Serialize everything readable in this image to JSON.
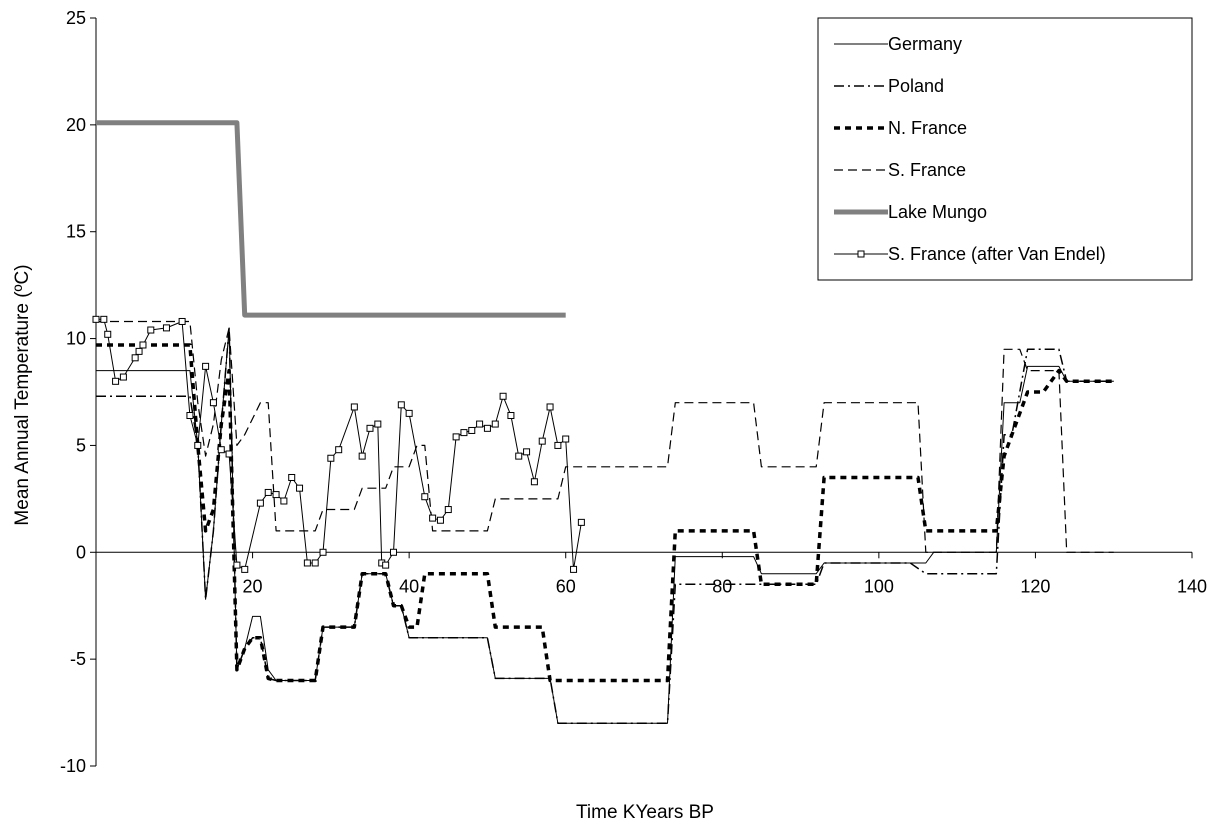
{
  "chart_data": {
    "type": "line",
    "title": "",
    "xlabel": "Time KYears BP",
    "ylabel": "Mean Annual Temperature (ºC)",
    "xlim": [
      0,
      140
    ],
    "ylim": [
      -10,
      25
    ],
    "x_ticks": [
      20,
      40,
      60,
      80,
      100,
      120,
      140
    ],
    "y_ticks": [
      -10,
      -5,
      0,
      5,
      10,
      15,
      20,
      25
    ],
    "grid": false,
    "legend_position": "top-right",
    "series": [
      {
        "name": "Germany",
        "style": "solid-thin",
        "color": "#000000",
        "points": [
          [
            0,
            8.5
          ],
          [
            12,
            8.5
          ],
          [
            13,
            5
          ],
          [
            14,
            -2.2
          ],
          [
            15,
            1
          ],
          [
            16,
            6
          ],
          [
            17,
            10.5
          ],
          [
            18,
            -5.5
          ],
          [
            19,
            -4.5
          ],
          [
            20,
            -3
          ],
          [
            21,
            -3
          ],
          [
            22,
            -5.5
          ],
          [
            23,
            -6
          ],
          [
            28,
            -6
          ],
          [
            29,
            -3.5
          ],
          [
            33,
            -3.5
          ],
          [
            34,
            -1
          ],
          [
            37,
            -1
          ],
          [
            38,
            -2.5
          ],
          [
            39,
            -2.5
          ],
          [
            40,
            -4
          ],
          [
            50,
            -4
          ],
          [
            51,
            -5.9
          ],
          [
            58,
            -5.9
          ],
          [
            59,
            -8
          ],
          [
            73,
            -8
          ],
          [
            74,
            -0.2
          ],
          [
            84,
            -0.2
          ],
          [
            85,
            -1
          ],
          [
            92,
            -1
          ],
          [
            93,
            -0.5
          ],
          [
            106,
            -0.5
          ],
          [
            107,
            0
          ],
          [
            115,
            0
          ],
          [
            116,
            7
          ],
          [
            118,
            7
          ],
          [
            119,
            8.7
          ],
          [
            123,
            8.7
          ],
          [
            124,
            8
          ],
          [
            130,
            8
          ]
        ]
      },
      {
        "name": "Poland",
        "style": "dash-dot",
        "color": "#000000",
        "points": [
          [
            0,
            7.3
          ],
          [
            12,
            7.3
          ],
          [
            13,
            5
          ],
          [
            14,
            -2.2
          ],
          [
            15,
            1
          ],
          [
            16,
            6
          ],
          [
            17,
            10.5
          ],
          [
            18,
            -5.5
          ],
          [
            19,
            -4.5
          ],
          [
            20,
            -4
          ],
          [
            21,
            -4
          ],
          [
            22,
            -5.9
          ],
          [
            23,
            -6
          ],
          [
            28,
            -6
          ],
          [
            29,
            -3.5
          ],
          [
            33,
            -3.5
          ],
          [
            34,
            -1
          ],
          [
            37,
            -1
          ],
          [
            38,
            -2.5
          ],
          [
            39,
            -2.5
          ],
          [
            40,
            -4
          ],
          [
            50,
            -4
          ],
          [
            51,
            -5.9
          ],
          [
            58,
            -5.9
          ],
          [
            59,
            -8
          ],
          [
            73,
            -8
          ],
          [
            74,
            -1.5
          ],
          [
            84,
            -1.5
          ],
          [
            85,
            -1.5
          ],
          [
            92,
            -1.5
          ],
          [
            93,
            -0.5
          ],
          [
            104,
            -0.5
          ],
          [
            106,
            -1
          ],
          [
            115,
            -1
          ],
          [
            116,
            5.5
          ],
          [
            117,
            5.5
          ],
          [
            119,
            9.5
          ],
          [
            123,
            9.5
          ],
          [
            124,
            8
          ],
          [
            130,
            8
          ]
        ]
      },
      {
        "name": "N. France",
        "style": "dotted-bold",
        "color": "#000000",
        "points": [
          [
            0,
            9.7
          ],
          [
            12,
            9.7
          ],
          [
            13,
            5
          ],
          [
            14,
            1
          ],
          [
            15,
            2
          ],
          [
            16,
            6
          ],
          [
            17,
            8.5
          ],
          [
            18,
            -5.5
          ],
          [
            19,
            -4.5
          ],
          [
            20,
            -4
          ],
          [
            21,
            -4
          ],
          [
            22,
            -5.9
          ],
          [
            23,
            -6
          ],
          [
            28,
            -6
          ],
          [
            29,
            -3.5
          ],
          [
            33,
            -3.5
          ],
          [
            34,
            -1
          ],
          [
            37,
            -1
          ],
          [
            38,
            -2.5
          ],
          [
            39,
            -2.5
          ],
          [
            40,
            -3.5
          ],
          [
            41,
            -3.5
          ],
          [
            42,
            -1
          ],
          [
            50,
            -1
          ],
          [
            51,
            -3.5
          ],
          [
            57,
            -3.5
          ],
          [
            58,
            -6
          ],
          [
            73,
            -6
          ],
          [
            74,
            1
          ],
          [
            84,
            1
          ],
          [
            85,
            -1.5
          ],
          [
            92,
            -1.5
          ],
          [
            93,
            3.5
          ],
          [
            105,
            3.5
          ],
          [
            106,
            1
          ],
          [
            115,
            1
          ],
          [
            116,
            4.5
          ],
          [
            117,
            5.5
          ],
          [
            119,
            7.5
          ],
          [
            121,
            7.5
          ],
          [
            123,
            8.5
          ],
          [
            124,
            8
          ],
          [
            130,
            8
          ]
        ]
      },
      {
        "name": "S. France",
        "style": "dashed",
        "color": "#000000",
        "points": [
          [
            0,
            10.8
          ],
          [
            12,
            10.8
          ],
          [
            13,
            7
          ],
          [
            14,
            4.5
          ],
          [
            15,
            6
          ],
          [
            16,
            9
          ],
          [
            17,
            10.5
          ],
          [
            18,
            5
          ],
          [
            19,
            5.5
          ],
          [
            21,
            7
          ],
          [
            22,
            7
          ],
          [
            23,
            1
          ],
          [
            28,
            1
          ],
          [
            29,
            2
          ],
          [
            33,
            2
          ],
          [
            34,
            3
          ],
          [
            37,
            3
          ],
          [
            38,
            4
          ],
          [
            40,
            4
          ],
          [
            41,
            5
          ],
          [
            42,
            5
          ],
          [
            43,
            1
          ],
          [
            50,
            1
          ],
          [
            51,
            2.5
          ],
          [
            59,
            2.5
          ],
          [
            60,
            4
          ],
          [
            73,
            4
          ],
          [
            74,
            7
          ],
          [
            84,
            7
          ],
          [
            85,
            4
          ],
          [
            92,
            4
          ],
          [
            93,
            7
          ],
          [
            105,
            7
          ],
          [
            106,
            0
          ],
          [
            115,
            0
          ],
          [
            116,
            9.5
          ],
          [
            118,
            9.5
          ],
          [
            119,
            8.5
          ],
          [
            123,
            8.5
          ],
          [
            124,
            0
          ],
          [
            130,
            0
          ]
        ]
      },
      {
        "name": "Lake Mungo",
        "style": "thick-gray",
        "color": "#808080",
        "points": [
          [
            0,
            20.1
          ],
          [
            18,
            20.1
          ],
          [
            19,
            11.1
          ],
          [
            60,
            11.1
          ]
        ]
      },
      {
        "name": "S. France (after Van Endel)",
        "style": "solid-square-markers",
        "color": "#000000",
        "points": [
          [
            0,
            10.9
          ],
          [
            1,
            10.9
          ],
          [
            1.5,
            10.2
          ],
          [
            2.5,
            8
          ],
          [
            3.5,
            8.2
          ],
          [
            5,
            9.1
          ],
          [
            5.5,
            9.4
          ],
          [
            6,
            9.7
          ],
          [
            7,
            10.4
          ],
          [
            9,
            10.5
          ],
          [
            11,
            10.8
          ],
          [
            12,
            6.4
          ],
          [
            13,
            5
          ],
          [
            14,
            8.7
          ],
          [
            15,
            7
          ],
          [
            16,
            4.8
          ],
          [
            17,
            4.6
          ],
          [
            18,
            -0.6
          ],
          [
            19,
            -0.8
          ],
          [
            21,
            2.3
          ],
          [
            22,
            2.8
          ],
          [
            23,
            2.7
          ],
          [
            24,
            2.4
          ],
          [
            25,
            3.5
          ],
          [
            26,
            3
          ],
          [
            27,
            -0.5
          ],
          [
            28,
            -0.5
          ],
          [
            29,
            0
          ],
          [
            30,
            4.4
          ],
          [
            31,
            4.8
          ],
          [
            33,
            6.8
          ],
          [
            34,
            4.5
          ],
          [
            35,
            5.8
          ],
          [
            36,
            6
          ],
          [
            36.5,
            -0.5
          ],
          [
            37,
            -0.6
          ],
          [
            38,
            0
          ],
          [
            39,
            6.9
          ],
          [
            40,
            6.5
          ],
          [
            42,
            2.6
          ],
          [
            43,
            1.6
          ],
          [
            44,
            1.5
          ],
          [
            45,
            2
          ],
          [
            46,
            5.4
          ],
          [
            47,
            5.6
          ],
          [
            48,
            5.7
          ],
          [
            49,
            6
          ],
          [
            50,
            5.8
          ],
          [
            51,
            6
          ],
          [
            52,
            7.3
          ],
          [
            53,
            6.4
          ],
          [
            54,
            4.5
          ],
          [
            55,
            4.7
          ],
          [
            56,
            3.3
          ],
          [
            57,
            5.2
          ],
          [
            58,
            6.8
          ],
          [
            59,
            5
          ],
          [
            60,
            5.3
          ],
          [
            61,
            -0.8
          ],
          [
            62,
            1.4
          ]
        ]
      }
    ]
  }
}
